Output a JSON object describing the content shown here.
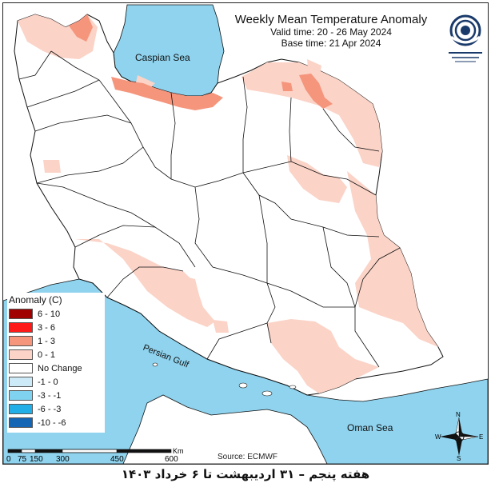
{
  "header": {
    "title": "Weekly Mean Temperature Anomaly",
    "valid_time": "Valid time: 20 - 26 May 2024",
    "base_time": "Base time: 21 Apr 2024"
  },
  "water_labels": {
    "caspian": "Caspian Sea",
    "persian_gulf": "Persian Gulf",
    "oman": "Oman Sea"
  },
  "legend": {
    "title": "Anomaly (C)",
    "items": [
      {
        "label": "6 - 10",
        "color": "#a00000"
      },
      {
        "label": "3 - 6",
        "color": "#ff1a1a"
      },
      {
        "label": "1 - 3",
        "color": "#f5957c"
      },
      {
        "label": "0 - 1",
        "color": "#fbd3c7"
      },
      {
        "label": "No Change",
        "color": "#ffffff"
      },
      {
        "label": "-1 - 0",
        "color": "#cdeaf8"
      },
      {
        "label": "-3 - -1",
        "color": "#7fd2f0"
      },
      {
        "label": "-6 - -3",
        "color": "#22aee6"
      },
      {
        "label": "-10 - -6",
        "color": "#1465b4"
      }
    ]
  },
  "scale": {
    "ticks": [
      "0",
      "75",
      "150",
      "300",
      "450",
      "600"
    ],
    "unit": "Km"
  },
  "source": "Source: ECMWF",
  "compass": {
    "n": "N",
    "s": "S",
    "e": "E",
    "w": "W"
  },
  "footer_caption": "هفته پنجم – ۳۱ اردیبهشت تا ۶ خرداد ۱۴۰۳",
  "colors": {
    "water": "#8fd3ee",
    "land_outside": "#ffffff",
    "border": "#111111"
  }
}
